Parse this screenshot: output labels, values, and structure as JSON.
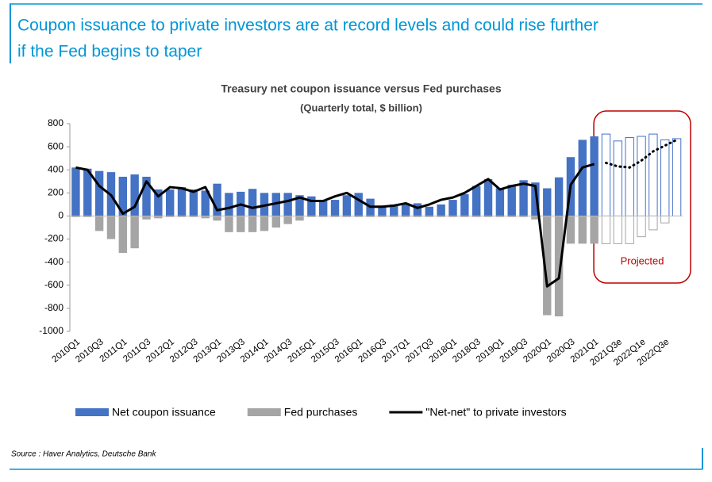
{
  "header": {
    "title_lines": [
      "Coupon issuance to private investors are at record levels and could rise further",
      "if the Fed begins to taper"
    ]
  },
  "chart_data": {
    "type": "bar",
    "title": "Treasury net coupon issuance versus Fed purchases",
    "subtitle": "(Quarterly total, $ billion)",
    "categories": [
      "2010Q1",
      null,
      "2010Q3",
      null,
      "2011Q1",
      null,
      "2011Q3",
      null,
      "2012Q1",
      null,
      "2012Q3",
      null,
      "2013Q1",
      null,
      "2013Q3",
      null,
      "2014Q1",
      null,
      "2014Q3",
      null,
      "2015Q1",
      null,
      "2015Q3",
      null,
      "2016Q1",
      null,
      "2016Q3",
      null,
      "2017Q1",
      null,
      "2017Q3",
      null,
      "2018Q1",
      null,
      "2018Q3",
      null,
      "2019Q1",
      null,
      "2019Q3",
      null,
      "2020Q1",
      null,
      "2020Q3",
      null,
      "2021Q1",
      null,
      "2021Q3e",
      null,
      "2022Q1e",
      null,
      "2022Q3e",
      null
    ],
    "series": [
      {
        "name": "Net coupon issuance",
        "type": "bar",
        "color": "#4472c4",
        "values": [
          420,
          410,
          390,
          380,
          340,
          360,
          340,
          230,
          230,
          250,
          230,
          220,
          280,
          200,
          210,
          235,
          200,
          200,
          200,
          180,
          170,
          130,
          140,
          180,
          200,
          150,
          90,
          100,
          100,
          110,
          80,
          100,
          140,
          190,
          260,
          320,
          240,
          270,
          310,
          290,
          240,
          335,
          510,
          660,
          690,
          710,
          650,
          680,
          690,
          710,
          660,
          670
        ]
      },
      {
        "name": "Fed purchases",
        "type": "bar",
        "color": "#a5a5a5",
        "values": [
          -10,
          -10,
          -130,
          -200,
          -320,
          -280,
          -30,
          -20,
          -10,
          -10,
          -10,
          -20,
          -40,
          -140,
          -140,
          -140,
          -130,
          -100,
          -70,
          -40,
          -10,
          -10,
          -10,
          -10,
          -10,
          -10,
          -10,
          -10,
          -10,
          -10,
          -10,
          -10,
          -10,
          -10,
          -10,
          -10,
          -10,
          -10,
          -10,
          -30,
          -860,
          -870,
          -240,
          -240,
          -240,
          -240,
          -240,
          -240,
          -180,
          -120,
          -60,
          0
        ]
      },
      {
        "name": "\"Net-net\" to private investors",
        "type": "line",
        "color": "#000000",
        "values": [
          420,
          400,
          260,
          180,
          20,
          80,
          300,
          170,
          250,
          240,
          210,
          250,
          50,
          70,
          100,
          70,
          90,
          110,
          130,
          160,
          130,
          130,
          170,
          200,
          140,
          80,
          80,
          90,
          110,
          70,
          100,
          140,
          160,
          200,
          260,
          320,
          230,
          260,
          280,
          260,
          -610,
          -540,
          270,
          420,
          450,
          460,
          430,
          420,
          480,
          560,
          610,
          660
        ]
      }
    ],
    "projected": {
      "label": "Projected",
      "start_index": 45,
      "color": "#c00000"
    },
    "ylim": [
      -1000,
      800
    ],
    "yticks": [
      -1000,
      -800,
      -600,
      -400,
      -200,
      0,
      200,
      400,
      600,
      800
    ],
    "legend": "bottom"
  },
  "source": "Source : Haver Analytics, Deutsche Bank"
}
